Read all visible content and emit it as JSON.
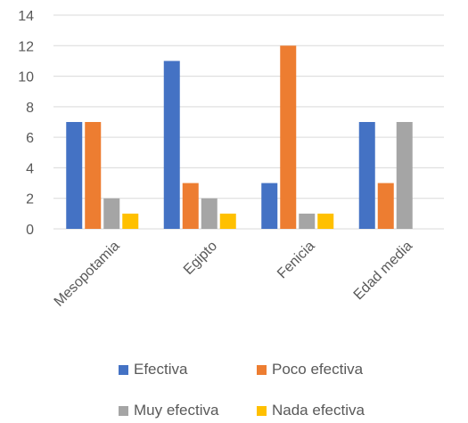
{
  "chart_data": {
    "type": "bar",
    "title": "",
    "xlabel": "",
    "ylabel": "",
    "categories": [
      "Mesopotamia",
      "Egipto",
      "Fenicia",
      "Edad media"
    ],
    "series": [
      {
        "name": "Efectiva",
        "color": "#4472C4",
        "values": [
          7,
          11,
          3,
          7
        ]
      },
      {
        "name": "Poco efectiva",
        "color": "#ED7D31",
        "values": [
          7,
          3,
          12,
          3
        ]
      },
      {
        "name": "Muy efectiva",
        "color": "#A5A5A5",
        "values": [
          2,
          2,
          1,
          7
        ]
      },
      {
        "name": "Nada efectiva",
        "color": "#FFC000",
        "values": [
          1,
          1,
          1,
          0
        ]
      }
    ],
    "ylim": [
      0,
      14
    ],
    "yticks": [
      "0",
      "2",
      "4",
      "6",
      "8",
      "10",
      "12",
      "14"
    ],
    "grid": true,
    "legend_position": "bottom"
  }
}
